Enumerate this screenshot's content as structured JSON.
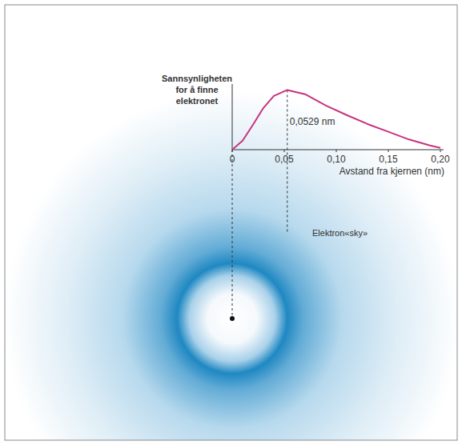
{
  "chart_data": {
    "type": "line",
    "ylabel": "Sannsynligheten for å finne elektronet",
    "xlabel": "Avstand fra kjernen (nm)",
    "x": [
      0,
      0.01,
      0.02,
      0.03,
      0.04,
      0.0529,
      0.07,
      0.09,
      0.11,
      0.13,
      0.15,
      0.17,
      0.19,
      0.2
    ],
    "values": [
      0,
      0.15,
      0.42,
      0.7,
      0.9,
      1,
      0.93,
      0.74,
      0.58,
      0.43,
      0.3,
      0.17,
      0.07,
      0.03
    ],
    "color": "#c8327e",
    "xlim": [
      0,
      0.2
    ],
    "xticks": [
      0,
      {
        "value": 0.05,
        "label": "0,05"
      },
      {
        "value": 0.1,
        "label": "0,10"
      },
      {
        "value": 0.15,
        "label": "0,15"
      },
      {
        "value": 0.2,
        "label": "0,20"
      }
    ],
    "ylim": [
      0,
      1.1
    ],
    "tick_labels": "x",
    "grid": false,
    "annotations": [
      {
        "x": 0.0529,
        "text": "0,0529 nm"
      }
    ],
    "cloud_label": "Elektron«sky»"
  }
}
